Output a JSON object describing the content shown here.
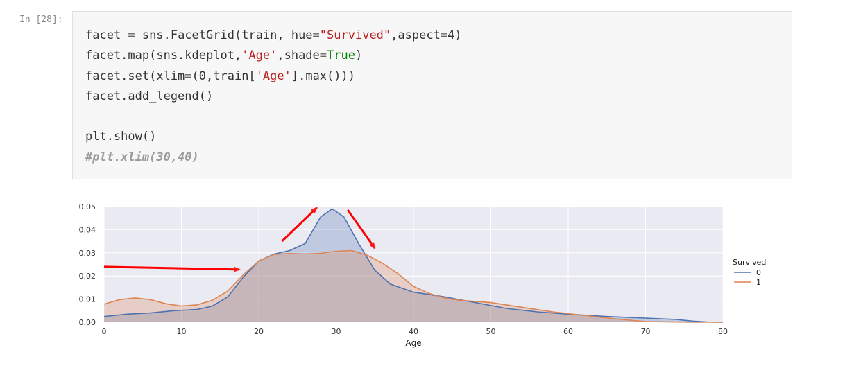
{
  "cell": {
    "prompt": "In [28]:",
    "code_lines": [
      [
        {
          "t": "facet ",
          "c": ""
        },
        {
          "t": "=",
          "c": "op"
        },
        {
          "t": " sns.FacetGrid(train, hue",
          "c": ""
        },
        {
          "t": "=",
          "c": "op"
        },
        {
          "t": "\"Survived\"",
          "c": "str"
        },
        {
          "t": ",aspect",
          "c": ""
        },
        {
          "t": "=",
          "c": "op"
        },
        {
          "t": "4)",
          "c": ""
        }
      ],
      [
        {
          "t": "facet.map(sns.kdeplot,",
          "c": ""
        },
        {
          "t": "'Age'",
          "c": "str"
        },
        {
          "t": ",shade",
          "c": ""
        },
        {
          "t": "=",
          "c": "op"
        },
        {
          "t": "True",
          "c": "kw"
        },
        {
          "t": ")",
          "c": ""
        }
      ],
      [
        {
          "t": "facet.set(xlim",
          "c": ""
        },
        {
          "t": "=",
          "c": "op"
        },
        {
          "t": "(0,train[",
          "c": ""
        },
        {
          "t": "'Age'",
          "c": "str"
        },
        {
          "t": "].max()))",
          "c": ""
        }
      ],
      [
        {
          "t": "facet.add_legend()",
          "c": ""
        }
      ],
      [],
      [
        {
          "t": "plt.show()",
          "c": ""
        }
      ],
      [
        {
          "t": "#plt.xlim(30,40)",
          "c": "comment"
        }
      ]
    ]
  },
  "chart_data": {
    "type": "area",
    "xlabel": "Age",
    "ylabel": "",
    "xlim": [
      0,
      80
    ],
    "ylim": [
      0,
      0.05
    ],
    "xticks": [
      0,
      10,
      20,
      30,
      40,
      50,
      60,
      70,
      80
    ],
    "yticks": [
      "0.00",
      "0.01",
      "0.02",
      "0.03",
      "0.04",
      "0.05"
    ],
    "grid": true,
    "legend_title": "Survived",
    "legend_position": "right",
    "series": [
      {
        "name": "0",
        "color": "#4c72b0",
        "points": [
          [
            0,
            0.0025
          ],
          [
            3,
            0.0035
          ],
          [
            6,
            0.004
          ],
          [
            9,
            0.005
          ],
          [
            12,
            0.0055
          ],
          [
            14,
            0.007
          ],
          [
            16,
            0.011
          ],
          [
            18,
            0.0195
          ],
          [
            20,
            0.0265
          ],
          [
            22,
            0.0295
          ],
          [
            24,
            0.031
          ],
          [
            26,
            0.034
          ],
          [
            28,
            0.0455
          ],
          [
            29.5,
            0.049
          ],
          [
            31,
            0.0455
          ],
          [
            33,
            0.0335
          ],
          [
            35,
            0.0225
          ],
          [
            37,
            0.0165
          ],
          [
            40,
            0.013
          ],
          [
            44,
            0.011
          ],
          [
            48,
            0.0085
          ],
          [
            52,
            0.006
          ],
          [
            56,
            0.0045
          ],
          [
            60,
            0.0035
          ],
          [
            65,
            0.0025
          ],
          [
            70,
            0.0018
          ],
          [
            74,
            0.0012
          ],
          [
            76,
            0.0005
          ],
          [
            78,
            0.0001
          ],
          [
            80,
            0.0
          ]
        ]
      },
      {
        "name": "1",
        "color": "#dd8452",
        "points": [
          [
            0,
            0.0078
          ],
          [
            2,
            0.0098
          ],
          [
            4,
            0.0105
          ],
          [
            6,
            0.0098
          ],
          [
            8,
            0.008
          ],
          [
            10,
            0.007
          ],
          [
            12,
            0.0075
          ],
          [
            14,
            0.0095
          ],
          [
            16,
            0.0135
          ],
          [
            18,
            0.0205
          ],
          [
            20,
            0.0265
          ],
          [
            22,
            0.0293
          ],
          [
            24,
            0.0297
          ],
          [
            26,
            0.0295
          ],
          [
            28,
            0.0298
          ],
          [
            30,
            0.0307
          ],
          [
            32,
            0.031
          ],
          [
            34,
            0.029
          ],
          [
            36,
            0.0255
          ],
          [
            38,
            0.021
          ],
          [
            40,
            0.0155
          ],
          [
            42,
            0.0125
          ],
          [
            44,
            0.0105
          ],
          [
            46,
            0.0095
          ],
          [
            50,
            0.0085
          ],
          [
            54,
            0.0065
          ],
          [
            58,
            0.0045
          ],
          [
            62,
            0.003
          ],
          [
            66,
            0.0015
          ],
          [
            70,
            0.0003
          ],
          [
            74,
            0.0001
          ],
          [
            80,
            0.0
          ]
        ]
      }
    ],
    "annotations": [
      {
        "type": "arrow",
        "color": "#ff0000",
        "from": [
          0,
          0.024
        ],
        "to": [
          17.5,
          0.0228
        ]
      },
      {
        "type": "arrow",
        "color": "#ff0000",
        "from": [
          23,
          0.035
        ],
        "to": [
          27.5,
          0.0495
        ]
      },
      {
        "type": "arrow",
        "color": "#ff0000",
        "from": [
          31.5,
          0.0485
        ],
        "to": [
          35,
          0.032
        ]
      }
    ]
  }
}
